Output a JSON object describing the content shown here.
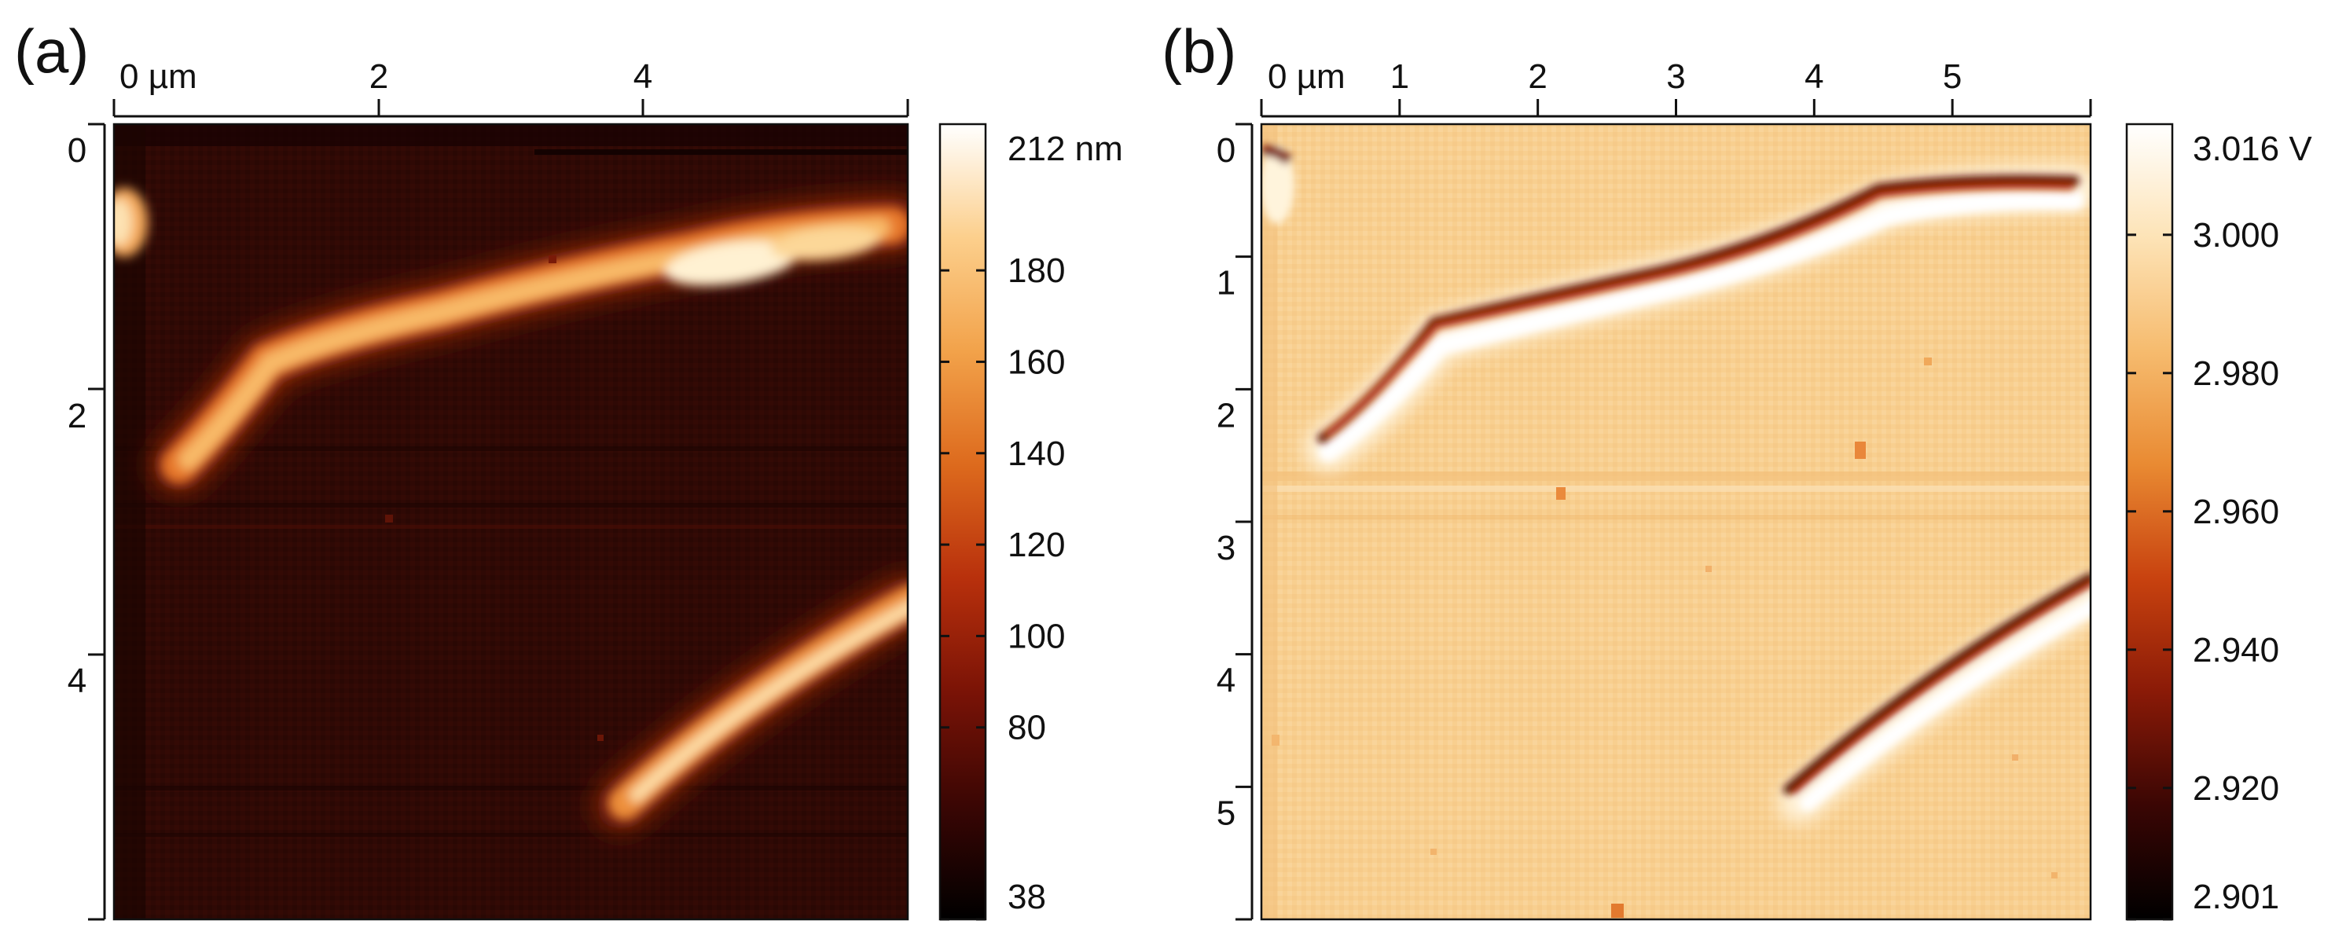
{
  "panels": [
    {
      "label": "(a)",
      "x_ticks": [
        "0 µm",
        "2",
        "4"
      ],
      "y_ticks": [
        "0",
        "2",
        "4"
      ],
      "x_range_um": [
        0,
        6.0
      ],
      "y_range_um": [
        0,
        6.0
      ],
      "colorbar": {
        "max_label": "212 nm",
        "tick_labels": [
          "180",
          "160",
          "140",
          "120",
          "100",
          "80",
          "38"
        ],
        "tick_values": [
          180,
          160,
          140,
          120,
          100,
          80,
          38
        ],
        "range": [
          38,
          212
        ],
        "colors": [
          "#000000",
          "#3a0604",
          "#7a1306",
          "#b8300c",
          "#dd6a1d",
          "#f2a24a",
          "#fccf8c",
          "#ffffff"
        ]
      },
      "background_color": "#2f0905",
      "feature_color": "#ffe9b8"
    },
    {
      "label": "(b)",
      "x_ticks": [
        "0 µm",
        "1",
        "2",
        "3",
        "4",
        "5"
      ],
      "y_ticks": [
        "0",
        "1",
        "2",
        "3",
        "4",
        "5"
      ],
      "x_range_um": [
        0,
        6.0
      ],
      "y_range_um": [
        0,
        6.0
      ],
      "colorbar": {
        "max_label": "3.016 V",
        "tick_labels": [
          "3.000",
          "2.980",
          "2.960",
          "2.940",
          "2.920",
          "2.901"
        ],
        "tick_values": [
          3.0,
          2.98,
          2.96,
          2.94,
          2.92,
          2.901
        ],
        "range": [
          2.901,
          3.016
        ],
        "colors": [
          "#000000",
          "#3a0604",
          "#8a1a07",
          "#c8420f",
          "#e98a32",
          "#f6bb6e",
          "#fde3b6",
          "#ffffff"
        ]
      },
      "background_color": "#f8cf8f",
      "feature_color": "#fff5df"
    }
  ]
}
